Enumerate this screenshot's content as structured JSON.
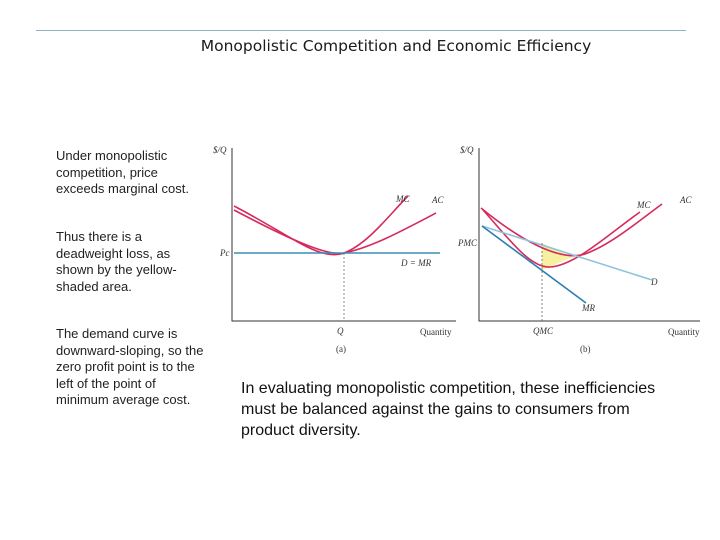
{
  "slide": {
    "title": "Monopolistic Competition and Economic Efficiency",
    "notes": [
      "Under monopolistic competition, price exceeds marginal cost.",
      "Thus there is a deadweight loss, as shown by the yellow-shaded area.",
      "The demand curve is downward-sloping, so the zero profit point is to the left of the point of minimum average cost."
    ],
    "conclusion": "In evaluating monopolistic competition, these inefficiencies must be balanced against the gains to consumers from product diversity."
  },
  "panel_a": {
    "y_axis": "$/Q",
    "x_axis": "Quantity",
    "caption": "(a)",
    "price_label": "Pc",
    "quantity_label": "Q",
    "mc_label": "MC",
    "ac_label": "AC",
    "demand_label": "D = MR"
  },
  "panel_b": {
    "y_axis": "$/Q",
    "x_axis": "Quantity",
    "caption": "(b)",
    "price_label": "PMC",
    "quantity_label": "QMC",
    "mc_label": "MC",
    "ac_label": "AC",
    "demand_label": "D",
    "mr_label": "MR"
  },
  "colors": {
    "curve": "#d62a5c",
    "demand_flat": "#3a8fb7",
    "demand_b": "#8fc3dd",
    "mr": "#2a7fb0",
    "deadweight": "#f6f0a0"
  }
}
